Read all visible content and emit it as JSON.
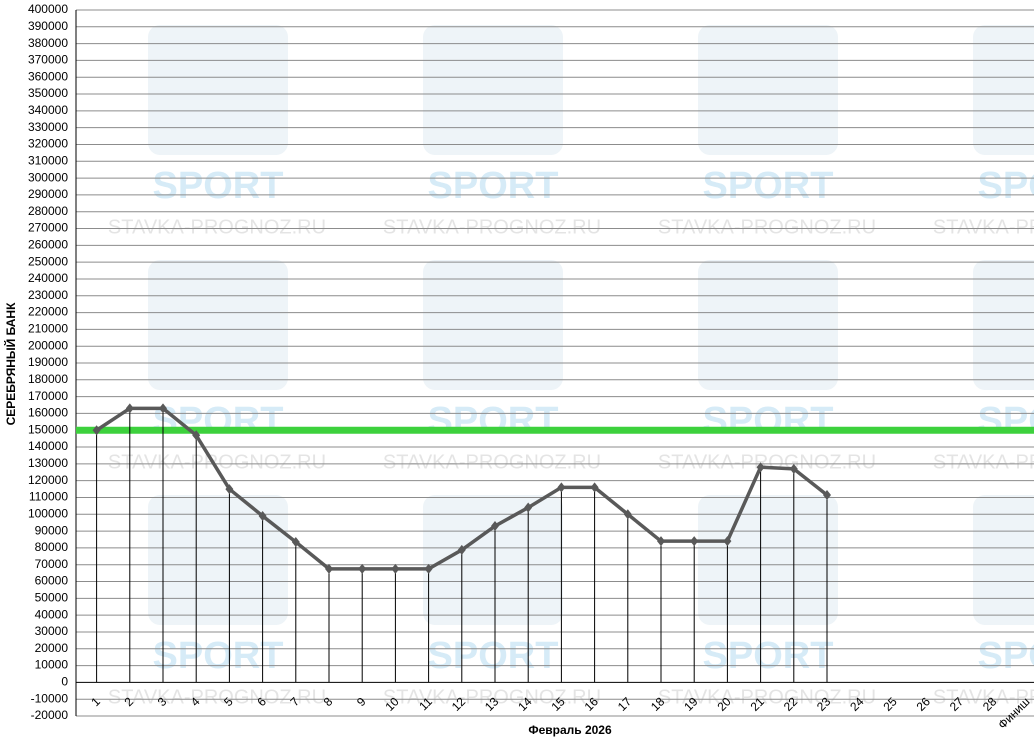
{
  "chart_data": {
    "type": "line",
    "y_label": "СЕРЕБРЯНЫЙ БАНК",
    "x_label": "Февраль 2026",
    "watermark": [
      "SPORT",
      "STAVKA-PROGNOZ.RU"
    ],
    "categories": [
      "1",
      "2",
      "3",
      "4",
      "5",
      "6",
      "7",
      "8",
      "9",
      "10",
      "11",
      "12",
      "13",
      "14",
      "15",
      "16",
      "17",
      "18",
      "19",
      "20",
      "21",
      "22",
      "23",
      "24",
      "25",
      "26",
      "27",
      "28",
      "Финиш"
    ],
    "series": [
      {
        "color": "#595959",
        "values": [
          150000,
          163000,
          163000,
          147000,
          115000,
          99000,
          83500,
          67500,
          67500,
          67500,
          67500,
          78800,
          93000,
          104000,
          116000,
          116000,
          100000,
          84000,
          84000,
          84000,
          128000,
          127000,
          111500,
          null,
          null,
          null,
          null,
          null,
          null
        ]
      }
    ],
    "reference_line": {
      "value": 150000,
      "color": "#3dd13d"
    },
    "drop_lines": true,
    "ylim": [
      -20000,
      400000
    ],
    "yticks": [
      -20000,
      -10000,
      0,
      10000,
      20000,
      30000,
      40000,
      50000,
      60000,
      70000,
      80000,
      90000,
      100000,
      110000,
      120000,
      130000,
      140000,
      150000,
      160000,
      170000,
      180000,
      190000,
      200000,
      210000,
      220000,
      230000,
      240000,
      250000,
      260000,
      270000,
      280000,
      290000,
      300000,
      310000,
      320000,
      330000,
      340000,
      350000,
      360000,
      370000,
      380000,
      390000,
      400000
    ],
    "grid": true
  }
}
